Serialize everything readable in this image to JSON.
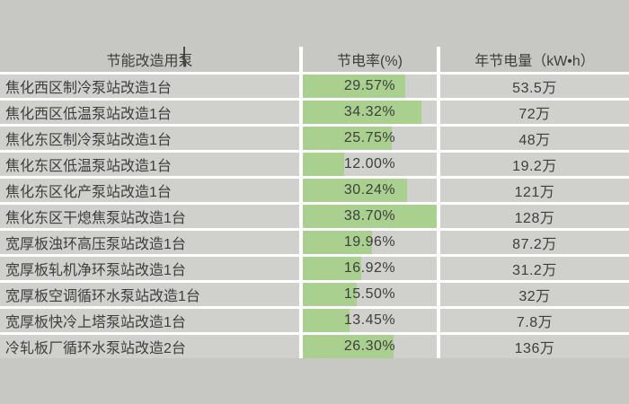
{
  "page": {
    "background": "#c7c7c4",
    "cell_background": "#d0d0cd",
    "separator_color": "#ffffff",
    "text_color": "#3e3e3e"
  },
  "table": {
    "columns": [
      {
        "label": "节能改造用泵"
      },
      {
        "label": "节电率(%)"
      },
      {
        "label": "年节电量（kW•h）"
      }
    ],
    "bar": {
      "color": "#a9d08e",
      "max_percent": 38.7
    },
    "rows": [
      {
        "name": "焦化西区制冷泵站改造1台",
        "rate": 29.57,
        "rate_label": "29.57%",
        "annual": "53.5万"
      },
      {
        "name": "焦化西区低温泵站改造1台",
        "rate": 34.32,
        "rate_label": "34.32%",
        "annual": "72万"
      },
      {
        "name": "焦化东区制冷泵站改造1台",
        "rate": 25.75,
        "rate_label": "25.75%",
        "annual": "48万"
      },
      {
        "name": "焦化东区低温泵站改造1台",
        "rate": 12.0,
        "rate_label": "12.00%",
        "annual": "19.2万"
      },
      {
        "name": "焦化东区化产泵站改造1台",
        "rate": 30.24,
        "rate_label": "30.24%",
        "annual": "121万"
      },
      {
        "name": "焦化东区干熄焦泵站改造1台",
        "rate": 38.7,
        "rate_label": "38.70%",
        "annual": "128万"
      },
      {
        "name": "宽厚板浊环高压泵站改造1台",
        "rate": 19.96,
        "rate_label": "19.96%",
        "annual": "87.2万"
      },
      {
        "name": "宽厚板轧机净环泵站改造1台",
        "rate": 16.92,
        "rate_label": "16.92%",
        "annual": "31.2万"
      },
      {
        "name": "宽厚板空调循环水泵站改造1台",
        "rate": 15.5,
        "rate_label": "15.50%",
        "annual": "32万"
      },
      {
        "name": "宽厚板快冷上塔泵站改造1台",
        "rate": 13.45,
        "rate_label": "13.45%",
        "annual": "7.8万"
      },
      {
        "name": "冷轧板厂循环水泵站改造2台",
        "rate": 26.3,
        "rate_label": "26.30%",
        "annual": "136万"
      }
    ]
  },
  "chart_data": {
    "type": "bar",
    "orientation": "horizontal",
    "title": "",
    "categories": [
      "焦化西区制冷泵站改造1台",
      "焦化西区低温泵站改造1台",
      "焦化东区制冷泵站改造1台",
      "焦化东区低温泵站改造1台",
      "焦化东区化产泵站改造1台",
      "焦化东区干熄焦泵站改造1台",
      "宽厚板浊环高压泵站改造1台",
      "宽厚板轧机净环泵站改造1台",
      "宽厚板空调循环水泵站改造1台",
      "宽厚板快冷上塔泵站改造1台",
      "冷轧板厂循环水泵站改造2台"
    ],
    "series": [
      {
        "name": "节电率(%)",
        "values": [
          29.57,
          34.32,
          25.75,
          12.0,
          30.24,
          38.7,
          19.96,
          16.92,
          15.5,
          13.45,
          26.3
        ]
      },
      {
        "name": "年节电量（kW•h）",
        "values_text": [
          "53.5万",
          "72万",
          "48万",
          "19.2万",
          "121万",
          "128万",
          "87.2万",
          "31.2万",
          "32万",
          "7.8万",
          "136万"
        ],
        "values_kwh": [
          535000,
          720000,
          480000,
          192000,
          1210000,
          1280000,
          872000,
          312000,
          320000,
          78000,
          1360000
        ]
      }
    ],
    "xlim": [
      0,
      38.7
    ],
    "bar_color": "#a9d08e",
    "grid": false,
    "legend_position": "none"
  }
}
